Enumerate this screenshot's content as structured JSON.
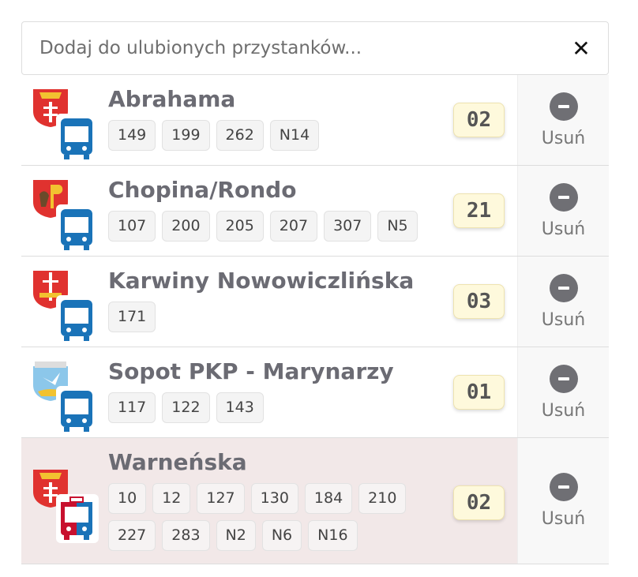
{
  "search": {
    "placeholder": "Dodaj do ulubionych przystanków...",
    "value": "",
    "clear_icon": "close-icon"
  },
  "colors": {
    "bus_blue": "#1a73b8",
    "tram_red": "#c8102e",
    "code_bg": "#fef9dc",
    "highlight_row": "#f2e8e8"
  },
  "stops": [
    {
      "name": "Abrahama",
      "crest": "gdansk",
      "vehicle": "bus",
      "lines": [
        "149",
        "199",
        "262",
        "N14"
      ],
      "code": "02",
      "remove_label": "Usuń"
    },
    {
      "name": "Chopina/Rondo",
      "crest": "pruszcz",
      "vehicle": "bus",
      "lines": [
        "107",
        "200",
        "205",
        "207",
        "307",
        "N5"
      ],
      "code": "21",
      "remove_label": "Usuń"
    },
    {
      "name": "Karwiny Nowowiczlińska",
      "crest": "gdynia",
      "vehicle": "bus",
      "lines": [
        "171"
      ],
      "code": "03",
      "remove_label": "Usuń"
    },
    {
      "name": "Sopot PKP - Marynarzy",
      "crest": "sopot",
      "vehicle": "bus",
      "lines": [
        "117",
        "122",
        "143"
      ],
      "code": "01",
      "remove_label": "Usuń"
    },
    {
      "name": "Warneńska",
      "crest": "gdansk",
      "vehicle": "bus-tram",
      "lines": [
        "10",
        "12",
        "127",
        "130",
        "184",
        "210",
        "227",
        "283",
        "N2",
        "N6",
        "N16"
      ],
      "code": "02",
      "remove_label": "Usuń",
      "highlighted": true
    }
  ]
}
